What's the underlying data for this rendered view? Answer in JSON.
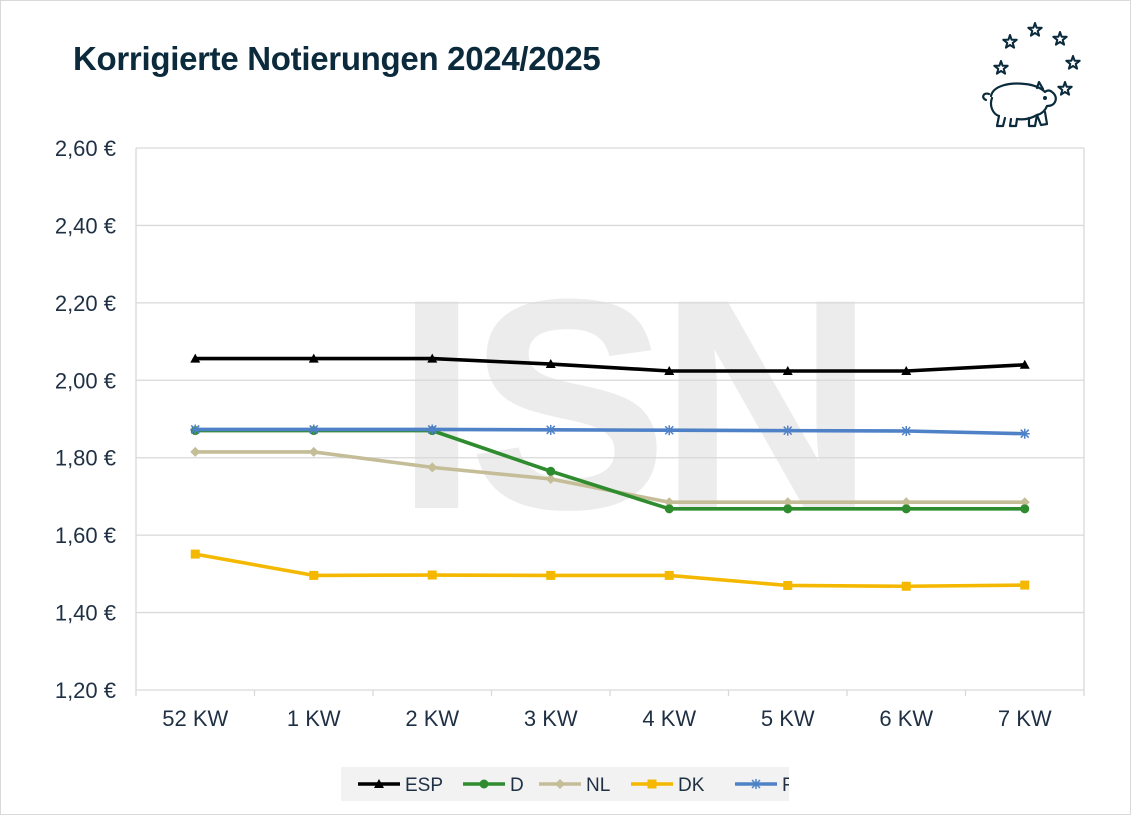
{
  "chart_data": {
    "type": "line",
    "title": "Korrigierte Notierungen 2024/2025",
    "xlabel": "",
    "ylabel": "",
    "categories": [
      "52 KW",
      "1 KW",
      "2 KW",
      "3 KW",
      "4 KW",
      "5 KW",
      "6 KW",
      "7 KW"
    ],
    "y_ticks": [
      "1,20 €",
      "1,40 €",
      "1,60 €",
      "1,80 €",
      "2,00 €",
      "2,20 €",
      "2,40 €",
      "2,60 €"
    ],
    "ylim": [
      1.2,
      2.6
    ],
    "y_step": 0.2,
    "grid": true,
    "legend_position": "bottom",
    "watermark": "ISN",
    "series": [
      {
        "name": "ESP",
        "color": "#000000",
        "marker": "triangle",
        "values": [
          2.056,
          2.056,
          2.056,
          2.042,
          2.024,
          2.024,
          2.024,
          2.04
        ]
      },
      {
        "name": "D",
        "color": "#2e8b2e",
        "marker": "circle",
        "values": [
          1.87,
          1.87,
          1.87,
          1.765,
          1.668,
          1.668,
          1.668,
          1.668
        ]
      },
      {
        "name": "NL",
        "color": "#c4bd97",
        "marker": "diamond",
        "values": [
          1.815,
          1.815,
          1.775,
          1.745,
          1.685,
          1.685,
          1.685,
          1.685
        ]
      },
      {
        "name": "DK",
        "color": "#f5b800",
        "marker": "square",
        "values": [
          1.551,
          1.496,
          1.497,
          1.496,
          1.496,
          1.47,
          1.468,
          1.471
        ]
      },
      {
        "name": "F",
        "color": "#4f81c7",
        "marker": "asterisk",
        "values": [
          1.873,
          1.873,
          1.873,
          1.872,
          1.871,
          1.87,
          1.869,
          1.862
        ]
      }
    ]
  }
}
